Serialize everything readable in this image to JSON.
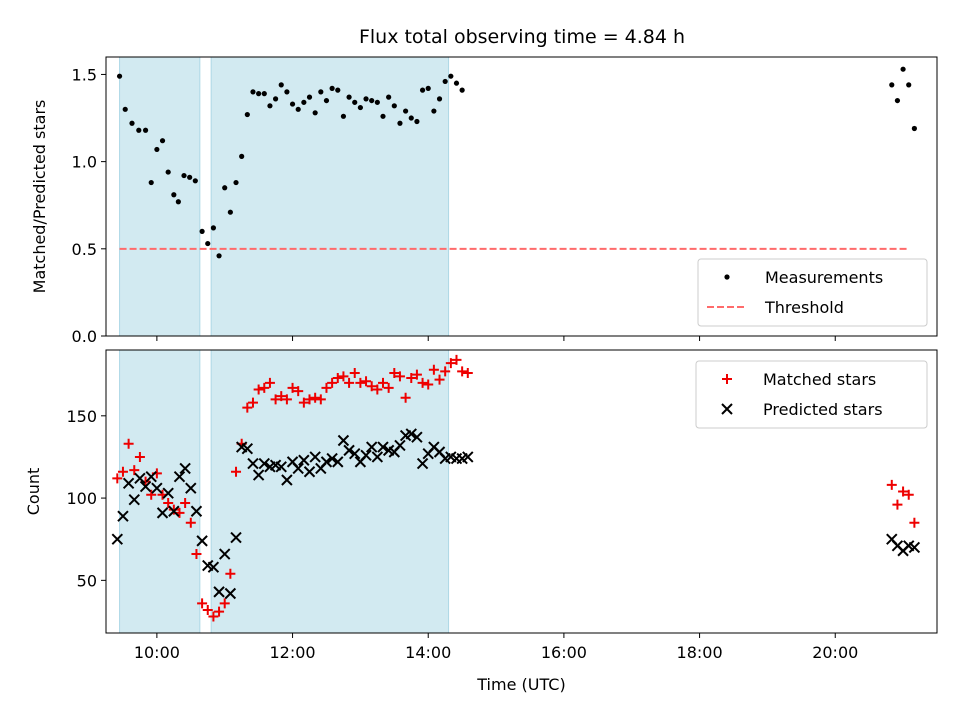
{
  "title": "Flux total observing time = 4.84 h",
  "colors": {
    "measurement": "#000000",
    "threshold": "#ff6b6b",
    "matched": "#ee0000",
    "predicted": "#000000",
    "shade": "#add8e6"
  },
  "chart_data": [
    {
      "type": "scatter",
      "ylabel": "Matched/Predicted stars",
      "xlim": [
        "09:15",
        "21:30"
      ],
      "ylim": [
        0,
        1.6
      ],
      "yticks": [
        0,
        0.5,
        1.0,
        1.5
      ],
      "ytick_labels": [
        "0.0",
        "0.5",
        "1.0",
        "1.5"
      ],
      "legend_position": "lower-right",
      "shaded_intervals": [
        [
          "09:27",
          "10:38"
        ],
        [
          "10:48",
          "14:18"
        ]
      ],
      "threshold": {
        "name": "Threshold",
        "y": 0.5,
        "x_range": [
          "09:27",
          "21:05"
        ]
      },
      "series": [
        {
          "name": "Measurements",
          "marker": "dot",
          "points": [
            [
              "09:27",
              1.49
            ],
            [
              "09:32",
              1.3
            ],
            [
              "09:38",
              1.22
            ],
            [
              "09:44",
              1.18
            ],
            [
              "09:50",
              1.18
            ],
            [
              "09:55",
              0.88
            ],
            [
              "10:00",
              1.07
            ],
            [
              "10:05",
              1.12
            ],
            [
              "10:10",
              0.94
            ],
            [
              "10:15",
              0.81
            ],
            [
              "10:19",
              0.77
            ],
            [
              "10:24",
              0.92
            ],
            [
              "10:29",
              0.91
            ],
            [
              "10:34",
              0.89
            ],
            [
              "10:40",
              0.6
            ],
            [
              "10:45",
              0.53
            ],
            [
              "10:50",
              0.62
            ],
            [
              "10:55",
              0.46
            ],
            [
              "11:00",
              0.85
            ],
            [
              "11:05",
              0.71
            ],
            [
              "11:10",
              0.88
            ],
            [
              "11:15",
              1.03
            ],
            [
              "11:20",
              1.27
            ],
            [
              "11:25",
              1.4
            ],
            [
              "11:30",
              1.39
            ],
            [
              "11:35",
              1.39
            ],
            [
              "11:40",
              1.32
            ],
            [
              "11:45",
              1.36
            ],
            [
              "11:50",
              1.44
            ],
            [
              "11:55",
              1.4
            ],
            [
              "12:00",
              1.33
            ],
            [
              "12:05",
              1.3
            ],
            [
              "12:10",
              1.34
            ],
            [
              "12:15",
              1.37
            ],
            [
              "12:20",
              1.28
            ],
            [
              "12:25",
              1.4
            ],
            [
              "12:30",
              1.35
            ],
            [
              "12:35",
              1.42
            ],
            [
              "12:40",
              1.41
            ],
            [
              "12:45",
              1.26
            ],
            [
              "12:50",
              1.37
            ],
            [
              "12:55",
              1.34
            ],
            [
              "13:00",
              1.31
            ],
            [
              "13:05",
              1.36
            ],
            [
              "13:10",
              1.35
            ],
            [
              "13:15",
              1.34
            ],
            [
              "13:20",
              1.26
            ],
            [
              "13:25",
              1.37
            ],
            [
              "13:30",
              1.32
            ],
            [
              "13:35",
              1.22
            ],
            [
              "13:40",
              1.29
            ],
            [
              "13:45",
              1.25
            ],
            [
              "13:50",
              1.23
            ],
            [
              "13:55",
              1.41
            ],
            [
              "14:00",
              1.42
            ],
            [
              "14:05",
              1.29
            ],
            [
              "14:10",
              1.36
            ],
            [
              "14:15",
              1.46
            ],
            [
              "14:20",
              1.49
            ],
            [
              "14:25",
              1.45
            ],
            [
              "14:30",
              1.41
            ],
            [
              "20:50",
              1.44
            ],
            [
              "20:55",
              1.35
            ],
            [
              "21:00",
              1.53
            ],
            [
              "21:05",
              1.44
            ],
            [
              "21:10",
              1.19
            ]
          ]
        }
      ]
    },
    {
      "type": "scatter",
      "xlabel": "Time (UTC)",
      "ylabel": "Count",
      "xlim": [
        "09:15",
        "21:30"
      ],
      "ylim": [
        18,
        190
      ],
      "yticks": [
        50,
        100,
        150
      ],
      "ytick_labels": [
        "50",
        "100",
        "150"
      ],
      "xticks": [
        "10:00",
        "12:00",
        "14:00",
        "16:00",
        "18:00",
        "20:00"
      ],
      "legend_position": "upper-right",
      "shaded_intervals": [
        [
          "09:27",
          "10:38"
        ],
        [
          "10:48",
          "14:18"
        ]
      ],
      "series": [
        {
          "name": "Matched stars",
          "marker": "plus",
          "points": [
            [
              "09:25",
              112
            ],
            [
              "09:30",
              116
            ],
            [
              "09:35",
              133
            ],
            [
              "09:40",
              117
            ],
            [
              "09:45",
              125
            ],
            [
              "09:50",
              110
            ],
            [
              "09:55",
              102
            ],
            [
              "10:00",
              115
            ],
            [
              "10:05",
              102
            ],
            [
              "10:10",
              97
            ],
            [
              "10:15",
              93
            ],
            [
              "10:20",
              91
            ],
            [
              "10:25",
              97
            ],
            [
              "10:30",
              85
            ],
            [
              "10:35",
              66
            ],
            [
              "10:40",
              36
            ],
            [
              "10:45",
              32
            ],
            [
              "10:50",
              28
            ],
            [
              "10:55",
              31
            ],
            [
              "11:00",
              36
            ],
            [
              "11:05",
              54
            ],
            [
              "11:10",
              116
            ],
            [
              "11:15",
              133
            ],
            [
              "11:20",
              155
            ],
            [
              "11:25",
              158
            ],
            [
              "11:30",
              166
            ],
            [
              "11:35",
              167
            ],
            [
              "11:40",
              170
            ],
            [
              "11:45",
              160
            ],
            [
              "11:50",
              162
            ],
            [
              "11:55",
              160
            ],
            [
              "12:00",
              167
            ],
            [
              "12:05",
              165
            ],
            [
              "12:10",
              158
            ],
            [
              "12:15",
              160
            ],
            [
              "12:20",
              161
            ],
            [
              "12:25",
              160
            ],
            [
              "12:30",
              167
            ],
            [
              "12:35",
              170
            ],
            [
              "12:40",
              173
            ],
            [
              "12:45",
              174
            ],
            [
              "12:50",
              170
            ],
            [
              "12:55",
              176
            ],
            [
              "13:00",
              170
            ],
            [
              "13:05",
              171
            ],
            [
              "13:10",
              168
            ],
            [
              "13:15",
              166
            ],
            [
              "13:20",
              170
            ],
            [
              "13:25",
              167
            ],
            [
              "13:30",
              176
            ],
            [
              "13:35",
              174
            ],
            [
              "13:40",
              161
            ],
            [
              "13:45",
              173
            ],
            [
              "13:50",
              175
            ],
            [
              "13:55",
              170
            ],
            [
              "14:00",
              169
            ],
            [
              "14:05",
              178
            ],
            [
              "14:10",
              172
            ],
            [
              "14:15",
              177
            ],
            [
              "14:20",
              182
            ],
            [
              "14:25",
              184
            ],
            [
              "14:30",
              177
            ],
            [
              "14:35",
              176
            ],
            [
              "20:50",
              108
            ],
            [
              "20:55",
              96
            ],
            [
              "21:00",
              104
            ],
            [
              "21:05",
              102
            ],
            [
              "21:10",
              85
            ]
          ]
        },
        {
          "name": "Predicted stars",
          "marker": "x",
          "points": [
            [
              "09:25",
              75
            ],
            [
              "09:30",
              89
            ],
            [
              "09:35",
              109
            ],
            [
              "09:40",
              99
            ],
            [
              "09:45",
              112
            ],
            [
              "09:50",
              107
            ],
            [
              "09:55",
              113
            ],
            [
              "10:00",
              106
            ],
            [
              "10:05",
              91
            ],
            [
              "10:10",
              103
            ],
            [
              "10:15",
              92
            ],
            [
              "10:20",
              113
            ],
            [
              "10:25",
              118
            ],
            [
              "10:30",
              106
            ],
            [
              "10:35",
              92
            ],
            [
              "10:40",
              74
            ],
            [
              "10:45",
              59
            ],
            [
              "10:50",
              58
            ],
            [
              "10:55",
              43
            ],
            [
              "11:00",
              66
            ],
            [
              "11:05",
              42
            ],
            [
              "11:10",
              76
            ],
            [
              "11:15",
              131
            ],
            [
              "11:20",
              130
            ],
            [
              "11:25",
              121
            ],
            [
              "11:30",
              114
            ],
            [
              "11:35",
              121
            ],
            [
              "11:40",
              119
            ],
            [
              "11:45",
              120
            ],
            [
              "11:50",
              119
            ],
            [
              "11:55",
              111
            ],
            [
              "12:00",
              122
            ],
            [
              "12:05",
              118
            ],
            [
              "12:10",
              123
            ],
            [
              "12:15",
              116
            ],
            [
              "12:20",
              125
            ],
            [
              "12:25",
              118
            ],
            [
              "12:30",
              122
            ],
            [
              "12:35",
              124
            ],
            [
              "12:40",
              122
            ],
            [
              "12:45",
              135
            ],
            [
              "12:50",
              129
            ],
            [
              "12:55",
              127
            ],
            [
              "13:00",
              122
            ],
            [
              "13:05",
              126
            ],
            [
              "13:10",
              131
            ],
            [
              "13:15",
              125
            ],
            [
              "13:20",
              131
            ],
            [
              "13:25",
              129
            ],
            [
              "13:30",
              128
            ],
            [
              "13:35",
              132
            ],
            [
              "13:40",
              138
            ],
            [
              "13:45",
              139
            ],
            [
              "13:50",
              137
            ],
            [
              "13:55",
              121
            ],
            [
              "14:00",
              127
            ],
            [
              "14:05",
              131
            ],
            [
              "14:10",
              128
            ],
            [
              "14:15",
              124
            ],
            [
              "14:20",
              125
            ],
            [
              "14:25",
              124
            ],
            [
              "14:30",
              124
            ],
            [
              "14:35",
              125
            ],
            [
              "20:50",
              75
            ],
            [
              "20:55",
              71
            ],
            [
              "21:00",
              68
            ],
            [
              "21:05",
              71
            ],
            [
              "21:10",
              70
            ]
          ]
        }
      ]
    }
  ]
}
